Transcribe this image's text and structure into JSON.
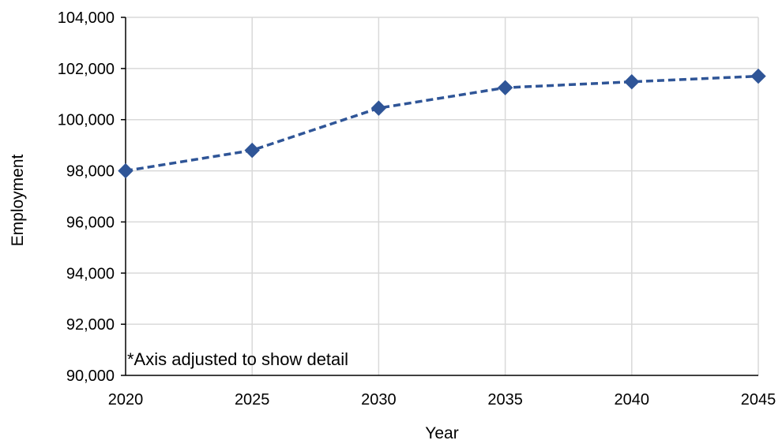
{
  "chart_data": {
    "type": "line",
    "xlabel": "Year",
    "ylabel": "Employment",
    "annotation": "*Axis adjusted to show detail",
    "x": [
      2020,
      2025,
      2030,
      2035,
      2040,
      2045
    ],
    "x_tick_labels": [
      "2020",
      "2025",
      "2030",
      "2035",
      "2040",
      "2045"
    ],
    "y_tick_labels": [
      "90,000",
      "92,000",
      "94,000",
      "96,000",
      "98,000",
      "100,000",
      "102,000",
      "104,000"
    ],
    "y_ticks": [
      90000,
      92000,
      94000,
      96000,
      98000,
      100000,
      102000,
      104000
    ],
    "xlim": [
      2020,
      2045
    ],
    "ylim": [
      90000,
      104000
    ],
    "grid": true,
    "legend": "none",
    "series": [
      {
        "values": [
          98000,
          98800,
          100450,
          101250,
          101480,
          101700
        ],
        "color": "#2F5597",
        "line_style": "dashed",
        "marker": "diamond"
      }
    ]
  }
}
